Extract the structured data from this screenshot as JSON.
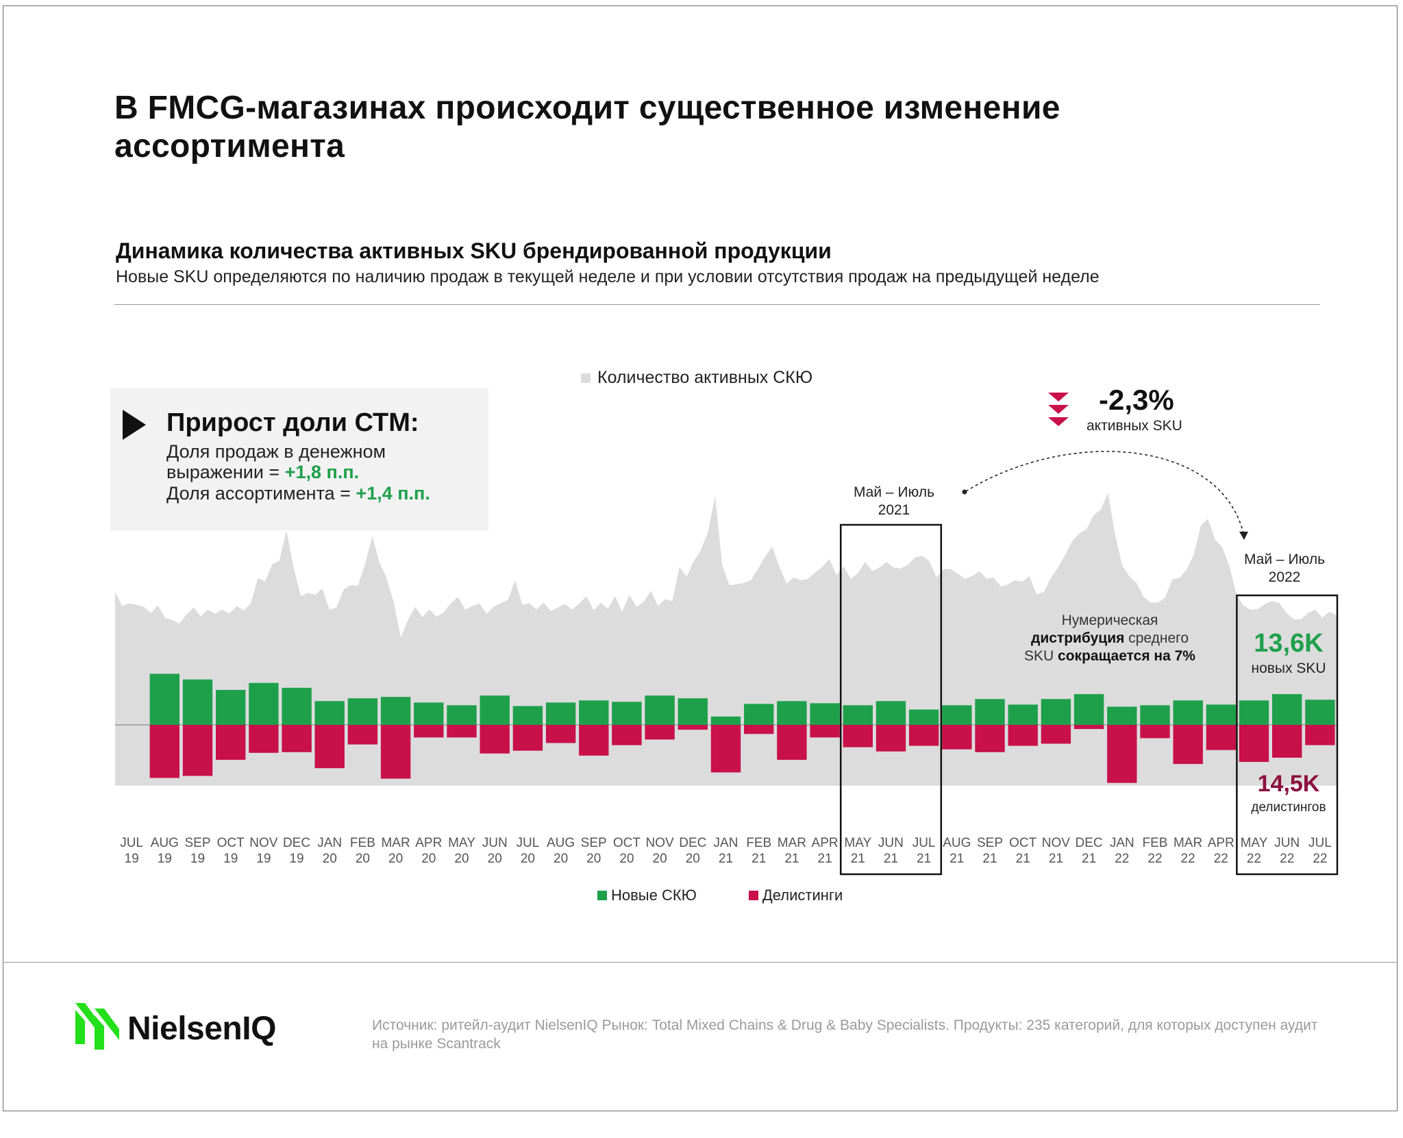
{
  "title": "В FMCG-магазинах происходит существенное изменение ассортимента",
  "subtitle": "Динамика количества активных SKU брендированной продукции",
  "subnote": "Новые SKU определяются по наличию продаж в текущей неделе и при условии отсутствия продаж на предыдущей неделе",
  "legend_top": "Количество активных СКЮ",
  "panel": {
    "heading": "Прирост доли СТМ:",
    "line1": "Доля продаж в денежном",
    "line2_prefix": "выражении = ",
    "line2_value": "+1,8 п.п.",
    "line3_prefix": "Доля ассортимента = ",
    "line3_value": "+1,4 п.п."
  },
  "decline": {
    "value": "-2,3%",
    "caption": "активных SKU"
  },
  "period_2021": {
    "line1": "Май – Июль",
    "line2": "2021"
  },
  "period_2022": {
    "line1": "Май – Июль",
    "line2": "2022"
  },
  "note": {
    "l1": "Нумерическая",
    "l2_bold": "дистрибуция",
    "l2_rest": " среднего",
    "l3_start": "SKU ",
    "l3_bold": "сокращается на 7%"
  },
  "new_sku": {
    "value": "13,6K",
    "caption": "новых SKU"
  },
  "delistings": {
    "value": "14,5K",
    "caption": "делистингов"
  },
  "legend_bottom": {
    "new": "Новые СКЮ",
    "delist": "Делистинги"
  },
  "source": "Источник: ритейл-аудит NielsenIQ  Рынок: Total Mixed Chains & Drug & Baby Specialists. Продукты: 235 категорий, для которых доступен аудит на рынке Scantrack",
  "brand": "NielsenIQ",
  "colors": {
    "green": "#1ea04b",
    "red": "#c8104a",
    "area": "#dcdcdc",
    "dark_red": "#8c0f3e"
  },
  "chart_data": {
    "type": "bar",
    "title": "Динамика количества активных SKU брендированной продукции",
    "categories": [
      "JUL 19",
      "AUG 19",
      "SEP 19",
      "OCT 19",
      "NOV 19",
      "DEC 19",
      "JAN 20",
      "FEB 20",
      "MAR 20",
      "APR 20",
      "MAY 20",
      "JUN 20",
      "JUL 20",
      "AUG 20",
      "SEP 20",
      "OCT 20",
      "NOV 20",
      "DEC 20",
      "JAN 21",
      "FEB 21",
      "MAR 21",
      "APR 21",
      "MAY 21",
      "JUN 21",
      "JUL 21",
      "AUG 21",
      "SEP 21",
      "OCT 21",
      "NOV 21",
      "DEC 21",
      "JAN 22",
      "FEB 22",
      "MAR 22",
      "APR 22",
      "MAY 22",
      "JUN 22",
      "JUL 22"
    ],
    "tick_months": [
      "JUL",
      "AUG",
      "SEP",
      "OCT",
      "NOV",
      "DEC",
      "JAN",
      "FEB",
      "MAR",
      "APR",
      "MAY",
      "JUN",
      "JUL",
      "AUG",
      "SEP",
      "OCT",
      "NOV",
      "DEC",
      "JAN",
      "FEB",
      "MAR",
      "APR",
      "MAY",
      "JUN",
      "JUL",
      "AUG",
      "SEP",
      "OCT",
      "NOV",
      "DEC",
      "JAN",
      "FEB",
      "MAR",
      "APR",
      "MAY",
      "JUN",
      "JUL"
    ],
    "tick_years": [
      "19",
      "19",
      "19",
      "19",
      "19",
      "19",
      "20",
      "20",
      "20",
      "20",
      "20",
      "20",
      "20",
      "20",
      "20",
      "20",
      "20",
      "20",
      "21",
      "21",
      "21",
      "21",
      "21",
      "21",
      "21",
      "21",
      "21",
      "21",
      "21",
      "21",
      "22",
      "22",
      "22",
      "22",
      "22",
      "22",
      "22"
    ],
    "series": [
      {
        "name": "Новые СКЮ",
        "values": [
          null,
          7.3,
          6.5,
          5.0,
          6.0,
          5.3,
          3.4,
          3.8,
          4.0,
          3.2,
          2.8,
          4.2,
          2.7,
          3.2,
          3.5,
          3.3,
          4.2,
          3.8,
          1.2,
          3.0,
          3.4,
          3.1,
          2.8,
          3.4,
          2.2,
          2.8,
          3.7,
          2.9,
          3.7,
          4.4,
          2.6,
          2.8,
          3.5,
          2.9,
          3.5,
          4.4,
          3.6
        ]
      },
      {
        "name": "Делистинги",
        "values": [
          null,
          -7.6,
          -7.3,
          -5.0,
          -4.0,
          -3.9,
          -6.2,
          -2.8,
          -7.7,
          -1.8,
          -1.8,
          -4.1,
          -3.7,
          -2.6,
          -4.4,
          -2.9,
          -2.1,
          -0.7,
          -6.8,
          -1.3,
          -5.0,
          -1.8,
          -3.2,
          -3.8,
          -3.0,
          -3.5,
          -3.9,
          -3.0,
          -2.7,
          -0.6,
          -8.3,
          -1.9,
          -5.6,
          -3.6,
          -5.3,
          -4.7,
          -2.9
        ]
      }
    ],
    "area_series": {
      "name": "Количество активных СКЮ",
      "values": [
        19.1,
        17.0,
        17.4,
        17.2,
        16.9,
        16.0,
        17.1,
        15.3,
        15.0,
        14.5,
        15.8,
        16.8,
        15.5,
        16.5,
        15.9,
        16.5,
        15.9,
        17.0,
        16.4,
        17.4,
        21.0,
        20.5,
        23.0,
        23.5,
        27.8,
        22.5,
        18.4,
        18.9,
        18.6,
        19.5,
        16.5,
        16.8,
        19.4,
        20.0,
        19.9,
        23.0,
        27.0,
        23.3,
        21.0,
        17.6,
        12.5,
        15.0,
        16.9,
        15.4,
        16.5,
        15.5,
        16.1,
        17.4,
        18.3,
        16.5,
        17.0,
        17.4,
        15.9,
        16.9,
        17.4,
        17.9,
        20.7,
        17.2,
        17.4,
        16.5,
        17.5,
        16.3,
        16.8,
        17.3,
        16.5,
        17.4,
        18.4,
        16.4,
        17.5,
        16.6,
        18.4,
        16.2,
        18.6,
        16.9,
        17.6,
        19.2,
        17.0,
        18.0,
        17.7,
        22.6,
        21.2,
        23.4,
        25.0,
        27.6,
        32.7,
        22.8,
        20.0,
        20.1,
        20.3,
        20.7,
        22.3,
        24.1,
        25.5,
        22.6,
        20.2,
        21.1,
        20.7,
        20.9,
        21.8,
        22.6,
        23.7,
        21.4,
        22.7,
        20.9,
        21.7,
        23.3,
        22.0,
        22.5,
        23.3,
        22.5,
        22.4,
        22.9,
        24.0,
        24.2,
        23.4,
        21.1,
        22.3,
        22.3,
        21.6,
        20.9,
        21.3,
        22.0,
        20.9,
        21.1,
        19.8,
        20.1,
        20.7,
        20.5,
        21.3,
        18.7,
        19.0,
        21.0,
        22.5,
        24.3,
        26.3,
        27.4,
        28.0,
        30.0,
        30.8,
        33.2,
        27.2,
        22.8,
        21.2,
        20.3,
        18.3,
        17.5,
        17.5,
        18.2,
        20.8,
        21.0,
        22.2,
        24.3,
        28.5,
        29.5,
        26.5,
        25.4,
        22.7,
        18.6,
        17.0,
        16.5,
        16.6,
        17.3,
        17.7,
        17.4,
        16.0,
        15.1,
        15.1,
        16.0,
        16.5,
        15.3,
        16.2,
        15.7
      ],
      "y_range": [
        -8.5,
        35
      ]
    },
    "ylim": [
      -8.5,
      35
    ],
    "highlight_ranges": [
      "MAY 21 – JUL 21",
      "MAY 22 – JUL 22"
    ]
  }
}
